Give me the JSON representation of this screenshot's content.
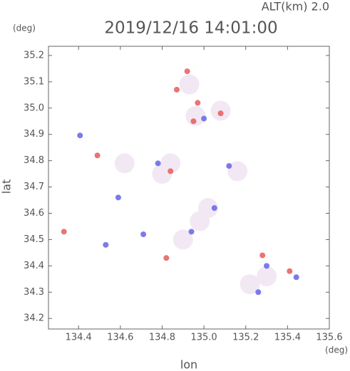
{
  "chart_data": {
    "type": "scatter",
    "title": "2019/12/16 14:01:00",
    "annotation": "ALT(km) 2.0",
    "y_unit": "(deg)",
    "x_unit": "(deg)",
    "x_label": "lon",
    "y_label": "lat",
    "xlim": [
      134.256,
      135.6
    ],
    "ylim": [
      34.16,
      35.235
    ],
    "xticks": [
      134.4,
      134.6,
      134.8,
      {
        "value": 135.0,
        "label": "135.0"
      },
      135.2,
      135.4,
      135.6
    ],
    "yticks": [
      34.2,
      34.3,
      34.4,
      34.5,
      34.6,
      34.7,
      34.8,
      34.9,
      {
        "value": 35.0,
        "label": "35.0"
      },
      35.1,
      35.2
    ],
    "series": [
      {
        "color": "#f2e8f4",
        "x": [
          134.84,
          134.9,
          134.98,
          135.02,
          135.3,
          135.22,
          134.96,
          134.8,
          134.62,
          135.16,
          134.93,
          135.08
        ],
        "y": [
          34.79,
          34.5,
          34.57,
          34.62,
          34.36,
          34.33,
          34.97,
          34.75,
          34.79,
          34.76,
          35.09,
          34.99
        ]
      },
      {
        "color": "#e85a5a",
        "x": [
          134.49,
          134.33,
          134.92,
          135.41,
          134.84,
          134.95,
          135.08,
          134.82,
          134.97,
          135.28,
          134.87
        ],
        "y": [
          34.82,
          34.53,
          35.14,
          34.38,
          34.76,
          34.95,
          34.98,
          34.43,
          35.02,
          34.44,
          35.07
        ]
      },
      {
        "color": "#6464e8",
        "x": [
          134.407,
          135.442,
          134.53,
          134.59,
          134.78,
          135.26,
          134.94,
          135.05,
          135.12,
          135.3,
          134.71,
          135.0
        ],
        "y": [
          34.896,
          34.357,
          34.48,
          34.66,
          34.79,
          34.3,
          34.53,
          34.62,
          34.78,
          34.4,
          34.52,
          34.96
        ]
      }
    ]
  }
}
